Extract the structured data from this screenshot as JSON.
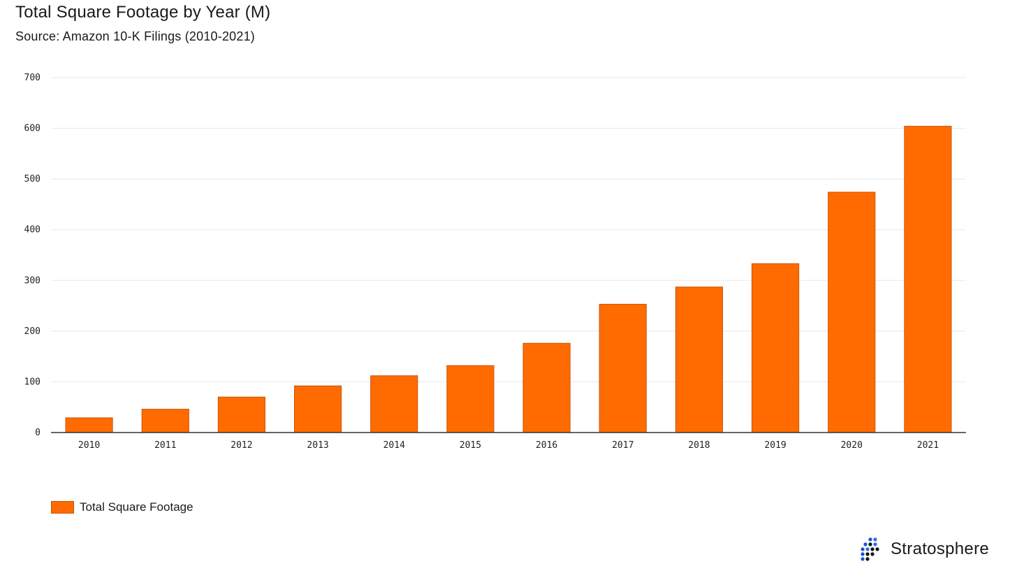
{
  "header": {
    "title": "Total Square Footage by Year (M)",
    "subtitle": "Source: Amazon 10-K Filings (2010-2021)"
  },
  "colors": {
    "bar": "#ff6b00",
    "bar_edge": "#c85400",
    "grid": "#e8e8e8",
    "axis": "#333333",
    "logo_dots": [
      "#1f4fd6",
      "#2b6cf0",
      "#111111"
    ]
  },
  "chart_data": {
    "type": "bar",
    "title": "Total Square Footage by Year (M)",
    "subtitle": "Source: Amazon 10-K Filings (2010-2021)",
    "categories": [
      "2010",
      "2011",
      "2012",
      "2013",
      "2014",
      "2015",
      "2016",
      "2017",
      "2018",
      "2019",
      "2020",
      "2021"
    ],
    "series": [
      {
        "name": "Total Square Footage",
        "values": [
          29,
          46,
          70,
          92,
          112,
          132,
          176,
          253,
          287,
          333,
          474,
          604
        ]
      }
    ],
    "ylim": [
      0,
      700
    ],
    "yticks": [
      0,
      100,
      200,
      300,
      400,
      500,
      600,
      700
    ],
    "grid": true,
    "legend": "bottom-left"
  },
  "legend": {
    "label": "Total Square Footage"
  },
  "brand": {
    "name": "Stratosphere",
    "icon": "dot-grid-logo-icon"
  }
}
